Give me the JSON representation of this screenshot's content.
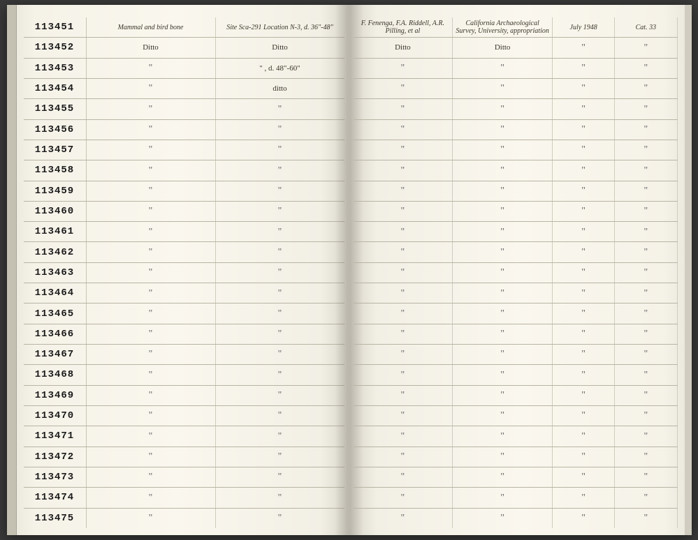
{
  "ledger": {
    "catalog_start": 113451,
    "catalog_end": 113475,
    "row_count": 25,
    "left_page": {
      "columns": [
        "catalog_no",
        "description",
        "locality"
      ],
      "header_row": {
        "description": "Mammal and bird bone",
        "locality": "Site Sca-291 Location N-3, d. 36\"-48\""
      },
      "rows": [
        {
          "catno": "113451",
          "desc": "Mammal and bird bone",
          "loc": "Site Sca-291 Location N-3, d. 36\"-48\""
        },
        {
          "catno": "113452",
          "desc": "Ditto",
          "loc": "Ditto"
        },
        {
          "catno": "113453",
          "desc": "\"",
          "loc": "\" , d. 48\"-60\""
        },
        {
          "catno": "113454",
          "desc": "\"",
          "loc": "ditto"
        },
        {
          "catno": "113455",
          "desc": "\"",
          "loc": "\""
        },
        {
          "catno": "113456",
          "desc": "\"",
          "loc": "\""
        },
        {
          "catno": "113457",
          "desc": "\"",
          "loc": "\""
        },
        {
          "catno": "113458",
          "desc": "\"",
          "loc": "\""
        },
        {
          "catno": "113459",
          "desc": "\"",
          "loc": "\""
        },
        {
          "catno": "113460",
          "desc": "\"",
          "loc": "\""
        },
        {
          "catno": "113461",
          "desc": "\"",
          "loc": "\""
        },
        {
          "catno": "113462",
          "desc": "\"",
          "loc": "\""
        },
        {
          "catno": "113463",
          "desc": "\"",
          "loc": "\""
        },
        {
          "catno": "113464",
          "desc": "\"",
          "loc": "\""
        },
        {
          "catno": "113465",
          "desc": "\"",
          "loc": "\""
        },
        {
          "catno": "113466",
          "desc": "\"",
          "loc": "\""
        },
        {
          "catno": "113467",
          "desc": "\"",
          "loc": "\""
        },
        {
          "catno": "113468",
          "desc": "\"",
          "loc": "\""
        },
        {
          "catno": "113469",
          "desc": "\"",
          "loc": "\""
        },
        {
          "catno": "113470",
          "desc": "\"",
          "loc": "\""
        },
        {
          "catno": "113471",
          "desc": "\"",
          "loc": "\""
        },
        {
          "catno": "113472",
          "desc": "\"",
          "loc": "\""
        },
        {
          "catno": "113473",
          "desc": "\"",
          "loc": "\""
        },
        {
          "catno": "113474",
          "desc": "\"",
          "loc": "\""
        },
        {
          "catno": "113475",
          "desc": "\"",
          "loc": "\""
        }
      ]
    },
    "right_page": {
      "columns": [
        "collector",
        "institution",
        "date",
        "acc"
      ],
      "rows": [
        {
          "collector": "F. Fenenga, F.A. Riddell, A.R. Pilling, et al",
          "inst": "California Archaeological Survey, University, appropriation",
          "date": "July 1948",
          "acc": "Cat. 33"
        },
        {
          "collector": "Ditto",
          "inst": "Ditto",
          "date": "\"",
          "acc": "\""
        },
        {
          "collector": "\"",
          "inst": "\"",
          "date": "\"",
          "acc": "\""
        },
        {
          "collector": "\"",
          "inst": "\"",
          "date": "\"",
          "acc": "\""
        },
        {
          "collector": "\"",
          "inst": "\"",
          "date": "\"",
          "acc": "\""
        },
        {
          "collector": "\"",
          "inst": "\"",
          "date": "\"",
          "acc": "\""
        },
        {
          "collector": "\"",
          "inst": "\"",
          "date": "\"",
          "acc": "\""
        },
        {
          "collector": "\"",
          "inst": "\"",
          "date": "\"",
          "acc": "\""
        },
        {
          "collector": "\"",
          "inst": "\"",
          "date": "\"",
          "acc": "\""
        },
        {
          "collector": "\"",
          "inst": "\"",
          "date": "\"",
          "acc": "\""
        },
        {
          "collector": "\"",
          "inst": "\"",
          "date": "\"",
          "acc": "\""
        },
        {
          "collector": "\"",
          "inst": "\"",
          "date": "\"",
          "acc": "\""
        },
        {
          "collector": "\"",
          "inst": "\"",
          "date": "\"",
          "acc": "\""
        },
        {
          "collector": "\"",
          "inst": "\"",
          "date": "\"",
          "acc": "\""
        },
        {
          "collector": "\"",
          "inst": "\"",
          "date": "\"",
          "acc": "\""
        },
        {
          "collector": "\"",
          "inst": "\"",
          "date": "\"",
          "acc": "\""
        },
        {
          "collector": "\"",
          "inst": "\"",
          "date": "\"",
          "acc": "\""
        },
        {
          "collector": "\"",
          "inst": "\"",
          "date": "\"",
          "acc": "\""
        },
        {
          "collector": "\"",
          "inst": "\"",
          "date": "\"",
          "acc": "\""
        },
        {
          "collector": "\"",
          "inst": "\"",
          "date": "\"",
          "acc": "\""
        },
        {
          "collector": "\"",
          "inst": "\"",
          "date": "\"",
          "acc": "\""
        },
        {
          "collector": "\"",
          "inst": "\"",
          "date": "\"",
          "acc": "\""
        },
        {
          "collector": "\"",
          "inst": "\"",
          "date": "\"",
          "acc": "\""
        },
        {
          "collector": "\"",
          "inst": "\"",
          "date": "\"",
          "acc": "\""
        },
        {
          "collector": "\"",
          "inst": "\"",
          "date": "\"",
          "acc": "\""
        }
      ]
    },
    "colors": {
      "paper": "#faf7ee",
      "rule_line": "#b8b4a4",
      "ink": "#3a3428",
      "stamp": "#1a1a1a",
      "faded_stamp": "#d4c8a8"
    }
  }
}
